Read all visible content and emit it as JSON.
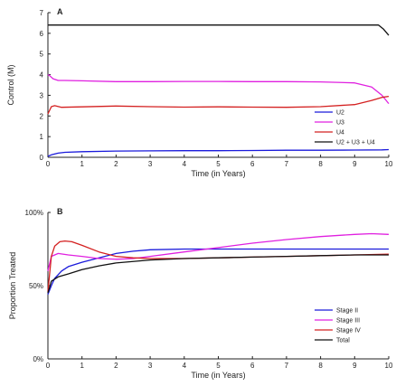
{
  "chart_data": [
    {
      "type": "line",
      "panel_label": "A",
      "xlabel": "Time (in Years)",
      "ylabel": "Control (M)",
      "xlim": [
        0,
        10
      ],
      "ylim": [
        0,
        7
      ],
      "xticks": [
        "0",
        "1",
        "2",
        "3",
        "4",
        "5",
        "6",
        "7",
        "8",
        "9",
        "10"
      ],
      "yticks": [
        "0",
        "1",
        "2",
        "3",
        "4",
        "5",
        "6",
        "7"
      ],
      "legend_position": "bottom-right",
      "series": [
        {
          "name": "U2",
          "color": "#1a1adb",
          "x": [
            0,
            0.1,
            0.3,
            0.5,
            1,
            2,
            3,
            4,
            5,
            6,
            7,
            8,
            9,
            9.8,
            10
          ],
          "y": [
            0.05,
            0.12,
            0.2,
            0.24,
            0.27,
            0.3,
            0.31,
            0.32,
            0.32,
            0.33,
            0.34,
            0.34,
            0.35,
            0.36,
            0.37
          ]
        },
        {
          "name": "U3",
          "color": "#e020e0",
          "x": [
            0,
            0.05,
            0.15,
            0.3,
            0.5,
            1,
            2,
            3,
            4,
            5,
            6,
            7,
            8,
            9,
            9.5,
            9.8,
            10
          ],
          "y": [
            4.0,
            3.95,
            3.8,
            3.72,
            3.72,
            3.7,
            3.66,
            3.66,
            3.67,
            3.67,
            3.66,
            3.66,
            3.65,
            3.6,
            3.4,
            3.0,
            2.6
          ]
        },
        {
          "name": "U4",
          "color": "#d42020",
          "x": [
            0,
            0.1,
            0.2,
            0.4,
            1,
            2,
            3,
            4,
            5,
            6,
            7,
            8,
            9,
            9.5,
            9.8,
            10
          ],
          "y": [
            2.1,
            2.45,
            2.5,
            2.42,
            2.44,
            2.48,
            2.45,
            2.43,
            2.44,
            2.43,
            2.42,
            2.45,
            2.55,
            2.75,
            2.9,
            2.95
          ]
        },
        {
          "name": "U2 + U3 + U4",
          "color": "#111111",
          "x": [
            0,
            1,
            2,
            3,
            4,
            5,
            6,
            7,
            8,
            9,
            9.7,
            9.85,
            10
          ],
          "y": [
            6.4,
            6.4,
            6.4,
            6.4,
            6.4,
            6.4,
            6.4,
            6.4,
            6.4,
            6.4,
            6.4,
            6.2,
            5.9
          ]
        }
      ]
    },
    {
      "type": "line",
      "panel_label": "B",
      "xlabel": "Time (in Years)",
      "ylabel": "Proportion Treated",
      "xlim": [
        0,
        10
      ],
      "ylim": [
        0,
        100
      ],
      "xticks": [
        "0",
        "1",
        "2",
        "3",
        "4",
        "5",
        "6",
        "7",
        "8",
        "9",
        "10"
      ],
      "yticks": [
        {
          "value": 0,
          "label": "0%"
        },
        {
          "value": 50,
          "label": "50%"
        },
        {
          "value": 100,
          "label": "100%"
        }
      ],
      "legend_position": "bottom-right",
      "series": [
        {
          "name": "Stage II",
          "color": "#1a1adb",
          "x": [
            0,
            0.1,
            0.2,
            0.4,
            0.6,
            1,
            1.5,
            2,
            2.5,
            3,
            4,
            5,
            6,
            7,
            8,
            9,
            10
          ],
          "y": [
            44,
            50,
            55,
            60,
            63,
            66,
            69,
            72,
            73.5,
            74.5,
            75,
            75,
            75,
            75,
            75,
            75,
            75
          ]
        },
        {
          "name": "Stage III",
          "color": "#e020e0",
          "x": [
            0,
            0.1,
            0.3,
            0.6,
            1,
            1.5,
            2,
            2.5,
            3,
            4,
            5,
            6,
            7,
            8,
            9,
            9.5,
            10
          ],
          "y": [
            60,
            70,
            72,
            71,
            70,
            68.5,
            68,
            68.5,
            70,
            73,
            76,
            79,
            81.5,
            83.5,
            85,
            85.5,
            85
          ]
        },
        {
          "name": "Stage IV",
          "color": "#d42020",
          "x": [
            0,
            0.1,
            0.2,
            0.35,
            0.5,
            0.7,
            1,
            1.5,
            2,
            2.5,
            3,
            4,
            5,
            6,
            7,
            8,
            9,
            10
          ],
          "y": [
            46,
            70,
            77,
            80,
            80.5,
            80,
            77.5,
            73,
            70,
            69,
            68.5,
            68.5,
            69,
            69.5,
            70,
            70.5,
            71,
            71.5
          ]
        },
        {
          "name": "Total",
          "color": "#111111",
          "x": [
            0,
            0.1,
            0.3,
            0.6,
            1,
            1.5,
            2,
            3,
            4,
            5,
            6,
            7,
            8,
            9,
            10
          ],
          "y": [
            45,
            53,
            56,
            58,
            61,
            63.5,
            65.5,
            67.5,
            68.5,
            69,
            69.5,
            70,
            70.5,
            71,
            71
          ]
        }
      ]
    }
  ]
}
